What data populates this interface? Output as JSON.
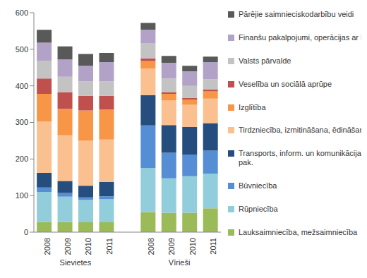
{
  "chart_data": {
    "type": "bar",
    "stacked": true,
    "grid": false,
    "legend": "right",
    "categories": [
      "2008",
      "2009",
      "2010",
      "2011",
      null,
      "2008",
      "2009",
      "2010",
      "2011"
    ],
    "group_labels": [
      "Sievietes",
      "Vīrieši"
    ],
    "ylim": [
      0,
      600
    ],
    "yticks": [
      0,
      100,
      200,
      300,
      400,
      500,
      600
    ],
    "series": [
      {
        "name": "Lauksaimniecība, mežsaimniecība",
        "color": "#9bbb59",
        "values": [
          28,
          28,
          27,
          27,
          null,
          55,
          53,
          53,
          65
        ]
      },
      {
        "name": "Rūpniecība",
        "color": "#92cddc",
        "values": [
          82,
          69,
          61,
          63,
          null,
          120,
          94,
          100,
          95
        ]
      },
      {
        "name": "Būvniecība",
        "color": "#558ed5",
        "values": [
          12,
          10,
          7,
          8,
          null,
          117,
          70,
          59,
          63
        ]
      },
      {
        "name": "Transports, inform. un komunikācijas pak.",
        "color": "#254e7f",
        "values": [
          40,
          33,
          32,
          39,
          null,
          83,
          76,
          76,
          75
        ]
      },
      {
        "name": "Tirdzniecība, izmitināšana, ēdināšana",
        "color": "#fac090",
        "values": [
          141,
          125,
          123,
          116,
          null,
          72,
          67,
          60,
          67
        ]
      },
      {
        "name": "Izglītība",
        "color": "#f79646",
        "values": [
          75,
          72,
          83,
          82,
          null,
          21,
          18,
          14,
          20
        ]
      },
      {
        "name": "Veselība un sociālā aprūpe",
        "color": "#c0504d",
        "values": [
          42,
          45,
          40,
          38,
          null,
          7,
          5,
          5,
          5
        ]
      },
      {
        "name": "Valsts pārvalde",
        "color": "#c3c3c3",
        "values": [
          48,
          43,
          39,
          39,
          null,
          42,
          37,
          33,
          28
        ]
      },
      {
        "name": "Finanšu pakalpojumi, operācijas ar NĪ",
        "color": "#b3a2c7",
        "values": [
          50,
          47,
          43,
          53,
          null,
          36,
          43,
          40,
          47
        ]
      },
      {
        "name": "Pārējie saimnieciskodarbību veidi",
        "color": "#595959",
        "values": [
          35,
          36,
          32,
          25,
          null,
          19,
          19,
          15,
          15
        ]
      }
    ]
  }
}
